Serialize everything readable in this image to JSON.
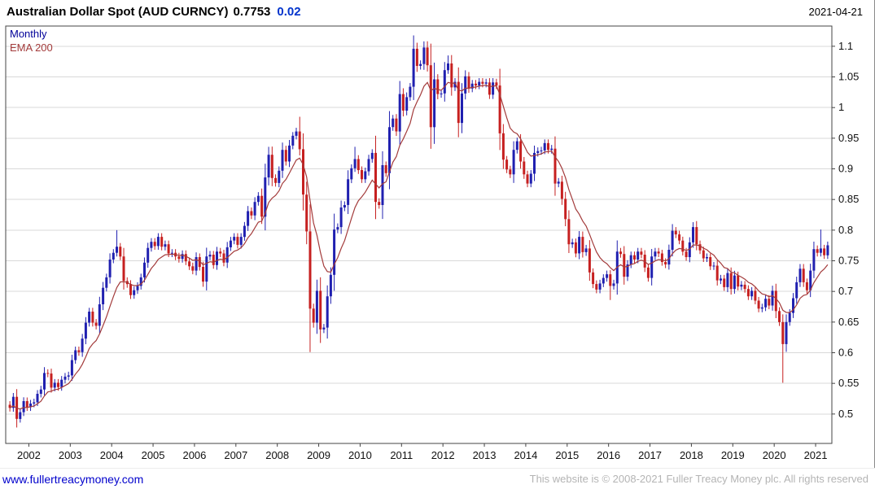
{
  "header": {
    "title": "Australian Dollar Spot (AUD CURNCY)",
    "last_price": "0.7753",
    "change": "0.02",
    "date": "2021-04-21"
  },
  "legend_items": [
    {
      "name": "timeframe",
      "label": "Monthly",
      "color": "#000099"
    },
    {
      "name": "ema",
      "label": "EMA 200",
      "color": "#a33b3b"
    }
  ],
  "footer": {
    "link": "www.fullertreacymoney.com",
    "copyright": "This website is © 2008-2021 Fuller Treacy Money plc. All rights reserved"
  },
  "colors": {
    "up": "#2020b0",
    "down": "#c62020",
    "ema": "#a33b3b",
    "grid": "#d9d9d9",
    "axis": "#444444",
    "text": "#111111",
    "change": "#0033cc",
    "link": "#0000cc",
    "copyright": "#b4b4b4"
  },
  "chart_data": {
    "type": "candlestick",
    "title": "Australian Dollar Spot (AUD CURNCY)",
    "timeframe": "Monthly",
    "overlay": {
      "name": "EMA 200",
      "period_months": 10
    },
    "last_price": 0.7753,
    "change": 0.02,
    "ylim": [
      0.452,
      1.133
    ],
    "yticks": [
      0.5,
      0.55,
      0.6,
      0.65,
      0.7,
      0.75,
      0.8,
      0.85,
      0.9,
      0.95,
      1,
      1.05,
      1.1
    ],
    "xticks": [
      2002,
      2003,
      2004,
      2005,
      2006,
      2007,
      2008,
      2009,
      2010,
      2011,
      2012,
      2013,
      2014,
      2015,
      2016,
      2017,
      2018,
      2019,
      2020,
      2021
    ],
    "grid": "horizontal",
    "legend_position": "top-left",
    "start": "2001-07",
    "first_open": 0.515,
    "wick_min": 0.006,
    "wick_frac": 0.35,
    "close": [
      0.51,
      0.528,
      0.492,
      0.503,
      0.521,
      0.511,
      0.517,
      0.519,
      0.533,
      0.54,
      0.567,
      0.566,
      0.543,
      0.551,
      0.544,
      0.556,
      0.561,
      0.563,
      0.588,
      0.604,
      0.601,
      0.623,
      0.649,
      0.667,
      0.649,
      0.644,
      0.679,
      0.706,
      0.723,
      0.752,
      0.763,
      0.773,
      0.757,
      0.717,
      0.712,
      0.694,
      0.702,
      0.709,
      0.723,
      0.747,
      0.771,
      0.781,
      0.774,
      0.789,
      0.773,
      0.777,
      0.762,
      0.763,
      0.757,
      0.753,
      0.761,
      0.749,
      0.741,
      0.734,
      0.756,
      0.74,
      0.716,
      0.757,
      0.76,
      0.743,
      0.765,
      0.762,
      0.747,
      0.772,
      0.783,
      0.789,
      0.776,
      0.789,
      0.807,
      0.831,
      0.824,
      0.846,
      0.856,
      0.822,
      0.886,
      0.923,
      0.885,
      0.877,
      0.897,
      0.931,
      0.912,
      0.938,
      0.954,
      0.961,
      0.932,
      0.858,
      0.798,
      0.672,
      0.649,
      0.701,
      0.638,
      0.641,
      0.692,
      0.727,
      0.801,
      0.805,
      0.837,
      0.841,
      0.883,
      0.901,
      0.916,
      0.898,
      0.883,
      0.896,
      0.916,
      0.926,
      0.846,
      0.841,
      0.906,
      0.893,
      0.968,
      0.982,
      0.961,
      1.022,
      0.995,
      1.017,
      1.034,
      1.096,
      1.068,
      1.071,
      1.098,
      1.069,
      0.968,
      1.046,
      1.022,
      1.023,
      1.061,
      1.072,
      1.033,
      1.042,
      0.975,
      1.023,
      1.051,
      1.031,
      1.039,
      1.036,
      1.042,
      1.039,
      1.041,
      1.021,
      1.041,
      1.036,
      0.958,
      0.915,
      0.899,
      0.891,
      0.931,
      0.945,
      0.912,
      0.891,
      0.876,
      0.892,
      0.926,
      0.929,
      0.93,
      0.942,
      0.931,
      0.933,
      0.876,
      0.879,
      0.851,
      0.818,
      0.777,
      0.78,
      0.762,
      0.789,
      0.764,
      0.77,
      0.731,
      0.712,
      0.703,
      0.713,
      0.722,
      0.728,
      0.709,
      0.713,
      0.765,
      0.761,
      0.724,
      0.744,
      0.759,
      0.752,
      0.765,
      0.76,
      0.739,
      0.722,
      0.757,
      0.765,
      0.762,
      0.748,
      0.744,
      0.768,
      0.799,
      0.793,
      0.783,
      0.765,
      0.756,
      0.78,
      0.805,
      0.777,
      0.767,
      0.754,
      0.756,
      0.741,
      0.742,
      0.718,
      0.721,
      0.707,
      0.73,
      0.704,
      0.726,
      0.708,
      0.711,
      0.704,
      0.692,
      0.701,
      0.685,
      0.672,
      0.674,
      0.688,
      0.677,
      0.701,
      0.668,
      0.65,
      0.614,
      0.65,
      0.665,
      0.689,
      0.715,
      0.737,
      0.715,
      0.702,
      0.734,
      0.769,
      0.763,
      0.77,
      0.759,
      0.7753
    ],
    "high_overrides": {
      "2004-02": 0.8,
      "2008-07": 0.985,
      "2009-11": 0.936,
      "2011-07": 1.108,
      "2012-02": 1.085,
      "2018-01": 0.813,
      "2021-02": 0.801
    },
    "low_overrides": {
      "2001-09": 0.478,
      "2008-10": 0.601,
      "2016-01": 0.686,
      "2020-03": 0.551
    }
  }
}
